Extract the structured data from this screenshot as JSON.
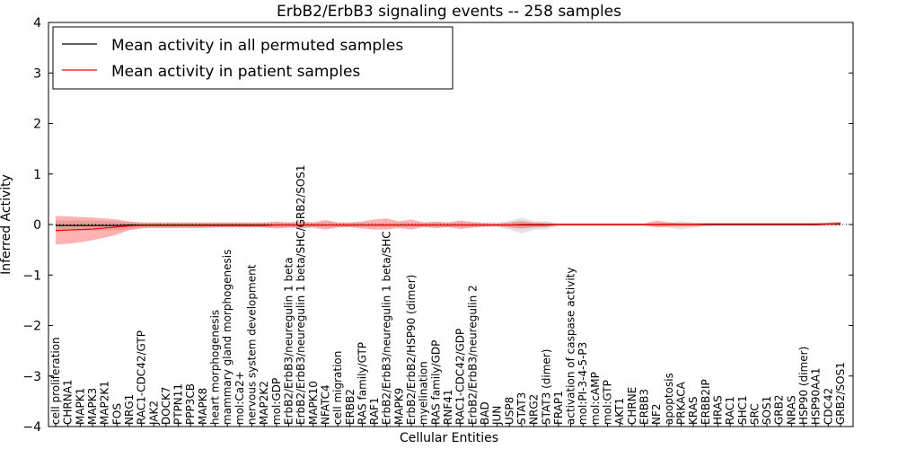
{
  "chart_data": {
    "type": "line",
    "title": "ErbB2/ErbB3 signaling events -- 258 samples",
    "xlabel": "Cellular Entities",
    "ylabel": "Inferred Activity",
    "ylim": [
      -4,
      4
    ],
    "yticks": [
      "4",
      "3",
      "2",
      "1",
      "0",
      "−1",
      "−2",
      "−3",
      "−4"
    ],
    "yticks_values": [
      4,
      3,
      2,
      1,
      0,
      -1,
      -2,
      -3,
      -4
    ],
    "categories": [
      "cell proliferation",
      "CHRNA1",
      "MAPK1",
      "MAPK3",
      "MAP2K1",
      "FOS",
      "NRG1",
      "RAC1-CDC42/GTP",
      "JAK2",
      "DOCK7",
      "PTPN11",
      "PPP3CB",
      "MAPK8",
      "heart morphogenesis",
      "mammary gland morphogenesis",
      "mol:Ca2+",
      "nervous system development",
      "MAP2K2",
      "mol:GDP",
      "ErbB2/ErbB3/neuregulin 1 beta",
      "ErbB2/ErbB3/neuregulin 1 beta/SHC/GRB2/SOS1",
      "MAPK10",
      "NFATC4",
      "cell migration",
      "ERBB2",
      "RAS family/GTP",
      "RAF1",
      "ErbB2/ErbB3/neuregulin 1 beta/SHC",
      "MAPK9",
      "ErbB2/ErbB2/HSP90 (dimer)",
      "myelination",
      "RAS family/GDP",
      "RNF41",
      "RAC1-CDC42/GDP",
      "ErbB2/ErbB3/neuregulin 2",
      "BAD",
      "JUN",
      "USP8",
      "STAT3",
      "NRG2",
      "STAT3 (dimer)",
      "FRAP1",
      "activation of caspase activity",
      "mol:PI-3-4-5-P3",
      "mol:cAMP",
      "mol:GTP",
      "AKT1",
      "CHRNE",
      "ERBB3",
      "NF2",
      "apoptosis",
      "PRKACA",
      "KRAS",
      "ERBB2IP",
      "HRAS",
      "RAC1",
      "SHC1",
      "SRC",
      "SOS1",
      "GRB2",
      "NRAS",
      "HSP90 (dimer)",
      "HSP90AA1",
      "CDC42",
      "GRB2/SOS1"
    ],
    "series": [
      {
        "name": "Mean activity in all permuted samples",
        "color": "#000000",
        "values": [
          -0.02,
          -0.02,
          -0.02,
          -0.02,
          -0.02,
          -0.02,
          -0.01,
          -0.01,
          -0.01,
          -0.01,
          -0.01,
          -0.01,
          -0.01,
          -0.01,
          -0.01,
          -0.01,
          -0.01,
          -0.01,
          -0.01,
          -0.01,
          -0.01,
          -0.01,
          -0.01,
          -0.01,
          -0.01,
          -0.01,
          -0.01,
          -0.01,
          -0.01,
          -0.01,
          -0.01,
          -0.01,
          -0.01,
          -0.01,
          -0.01,
          -0.01,
          -0.01,
          -0.01,
          -0.01,
          -0.01,
          -0.01,
          0.0,
          0.0,
          0.0,
          0.0,
          0.0,
          0.0,
          0.0,
          0.0,
          0.0,
          0.0,
          0.0,
          0.0,
          0.0,
          0.0,
          0.0,
          0.0,
          0.0,
          0.0,
          0.0,
          0.0,
          0.0,
          0.0,
          0.01,
          0.01
        ],
        "band_low": [
          -0.12,
          -0.12,
          -0.12,
          -0.12,
          -0.12,
          -0.12,
          -0.1,
          -0.06,
          -0.05,
          -0.05,
          -0.05,
          -0.05,
          -0.05,
          -0.05,
          -0.05,
          -0.05,
          -0.05,
          -0.05,
          -0.05,
          -0.05,
          -0.05,
          -0.05,
          -0.05,
          -0.05,
          -0.05,
          -0.05,
          -0.05,
          -0.05,
          -0.05,
          -0.05,
          -0.05,
          -0.05,
          -0.05,
          -0.05,
          -0.05,
          -0.05,
          -0.05,
          -0.1,
          -0.18,
          -0.1,
          -0.1,
          -0.03,
          -0.03,
          -0.03,
          -0.03,
          -0.03,
          -0.03,
          -0.03,
          -0.03,
          -0.03,
          -0.06,
          -0.1,
          -0.06,
          -0.04,
          -0.03,
          -0.03,
          -0.03,
          -0.03,
          -0.03,
          -0.03,
          -0.03,
          -0.03,
          -0.03,
          -0.03,
          -0.03
        ],
        "band_high": [
          0.08,
          0.08,
          0.08,
          0.08,
          0.07,
          0.06,
          0.05,
          0.04,
          0.04,
          0.04,
          0.04,
          0.04,
          0.04,
          0.04,
          0.04,
          0.04,
          0.04,
          0.04,
          0.04,
          0.04,
          0.04,
          0.04,
          0.04,
          0.04,
          0.04,
          0.04,
          0.04,
          0.04,
          0.04,
          0.04,
          0.04,
          0.04,
          0.04,
          0.04,
          0.04,
          0.04,
          0.04,
          0.07,
          0.14,
          0.07,
          0.07,
          0.02,
          0.02,
          0.02,
          0.02,
          0.02,
          0.02,
          0.02,
          0.02,
          0.02,
          0.04,
          0.07,
          0.04,
          0.03,
          0.03,
          0.03,
          0.03,
          0.03,
          0.03,
          0.03,
          0.03,
          0.03,
          0.03,
          0.04,
          0.05
        ]
      },
      {
        "name": "Mean activity in patient samples",
        "color": "#ff0000",
        "values": [
          -0.12,
          -0.11,
          -0.1,
          -0.09,
          -0.07,
          -0.05,
          -0.03,
          -0.02,
          -0.02,
          -0.02,
          -0.02,
          -0.02,
          -0.02,
          -0.02,
          -0.02,
          -0.02,
          -0.02,
          -0.02,
          -0.01,
          -0.01,
          -0.01,
          -0.01,
          -0.01,
          -0.01,
          -0.01,
          -0.01,
          -0.01,
          -0.01,
          -0.01,
          -0.01,
          -0.01,
          -0.01,
          -0.01,
          -0.01,
          -0.01,
          -0.01,
          -0.01,
          -0.01,
          0.0,
          0.0,
          0.0,
          0.0,
          0.0,
          0.0,
          0.0,
          0.0,
          0.0,
          0.0,
          0.0,
          0.0,
          0.0,
          0.0,
          0.0,
          0.01,
          0.01,
          0.01,
          0.01,
          0.01,
          0.01,
          0.01,
          0.01,
          0.01,
          0.01,
          0.01,
          0.02
        ],
        "band_low": [
          -0.4,
          -0.38,
          -0.35,
          -0.31,
          -0.26,
          -0.2,
          -0.11,
          -0.08,
          -0.07,
          -0.07,
          -0.07,
          -0.07,
          -0.07,
          -0.06,
          -0.06,
          -0.06,
          -0.06,
          -0.06,
          -0.08,
          -0.06,
          -0.08,
          -0.06,
          -0.1,
          -0.06,
          -0.05,
          -0.08,
          -0.1,
          -0.1,
          -0.07,
          -0.1,
          -0.05,
          -0.07,
          -0.05,
          -0.09,
          -0.06,
          -0.04,
          -0.03,
          -0.06,
          -0.08,
          -0.06,
          -0.05,
          -0.02,
          -0.02,
          -0.02,
          -0.02,
          -0.02,
          -0.02,
          -0.02,
          -0.02,
          -0.06,
          -0.04,
          -0.04,
          -0.04,
          -0.02,
          -0.02,
          -0.02,
          -0.02,
          -0.02,
          -0.02,
          -0.02,
          -0.02,
          -0.02,
          -0.02,
          -0.02,
          -0.02
        ],
        "band_high": [
          0.17,
          0.16,
          0.15,
          0.14,
          0.12,
          0.1,
          0.06,
          0.04,
          0.04,
          0.04,
          0.04,
          0.04,
          0.04,
          0.04,
          0.04,
          0.04,
          0.04,
          0.04,
          0.06,
          0.04,
          0.06,
          0.04,
          0.09,
          0.04,
          0.04,
          0.06,
          0.1,
          0.12,
          0.06,
          0.1,
          0.04,
          0.06,
          0.04,
          0.08,
          0.05,
          0.03,
          0.02,
          0.04,
          0.07,
          0.04,
          0.03,
          0.02,
          0.02,
          0.02,
          0.02,
          0.02,
          0.02,
          0.02,
          0.02,
          0.08,
          0.04,
          0.03,
          0.03,
          0.03,
          0.03,
          0.03,
          0.03,
          0.03,
          0.03,
          0.03,
          0.03,
          0.03,
          0.03,
          0.04,
          0.05
        ]
      }
    ],
    "legend_position": "upper-left",
    "grid": false
  }
}
